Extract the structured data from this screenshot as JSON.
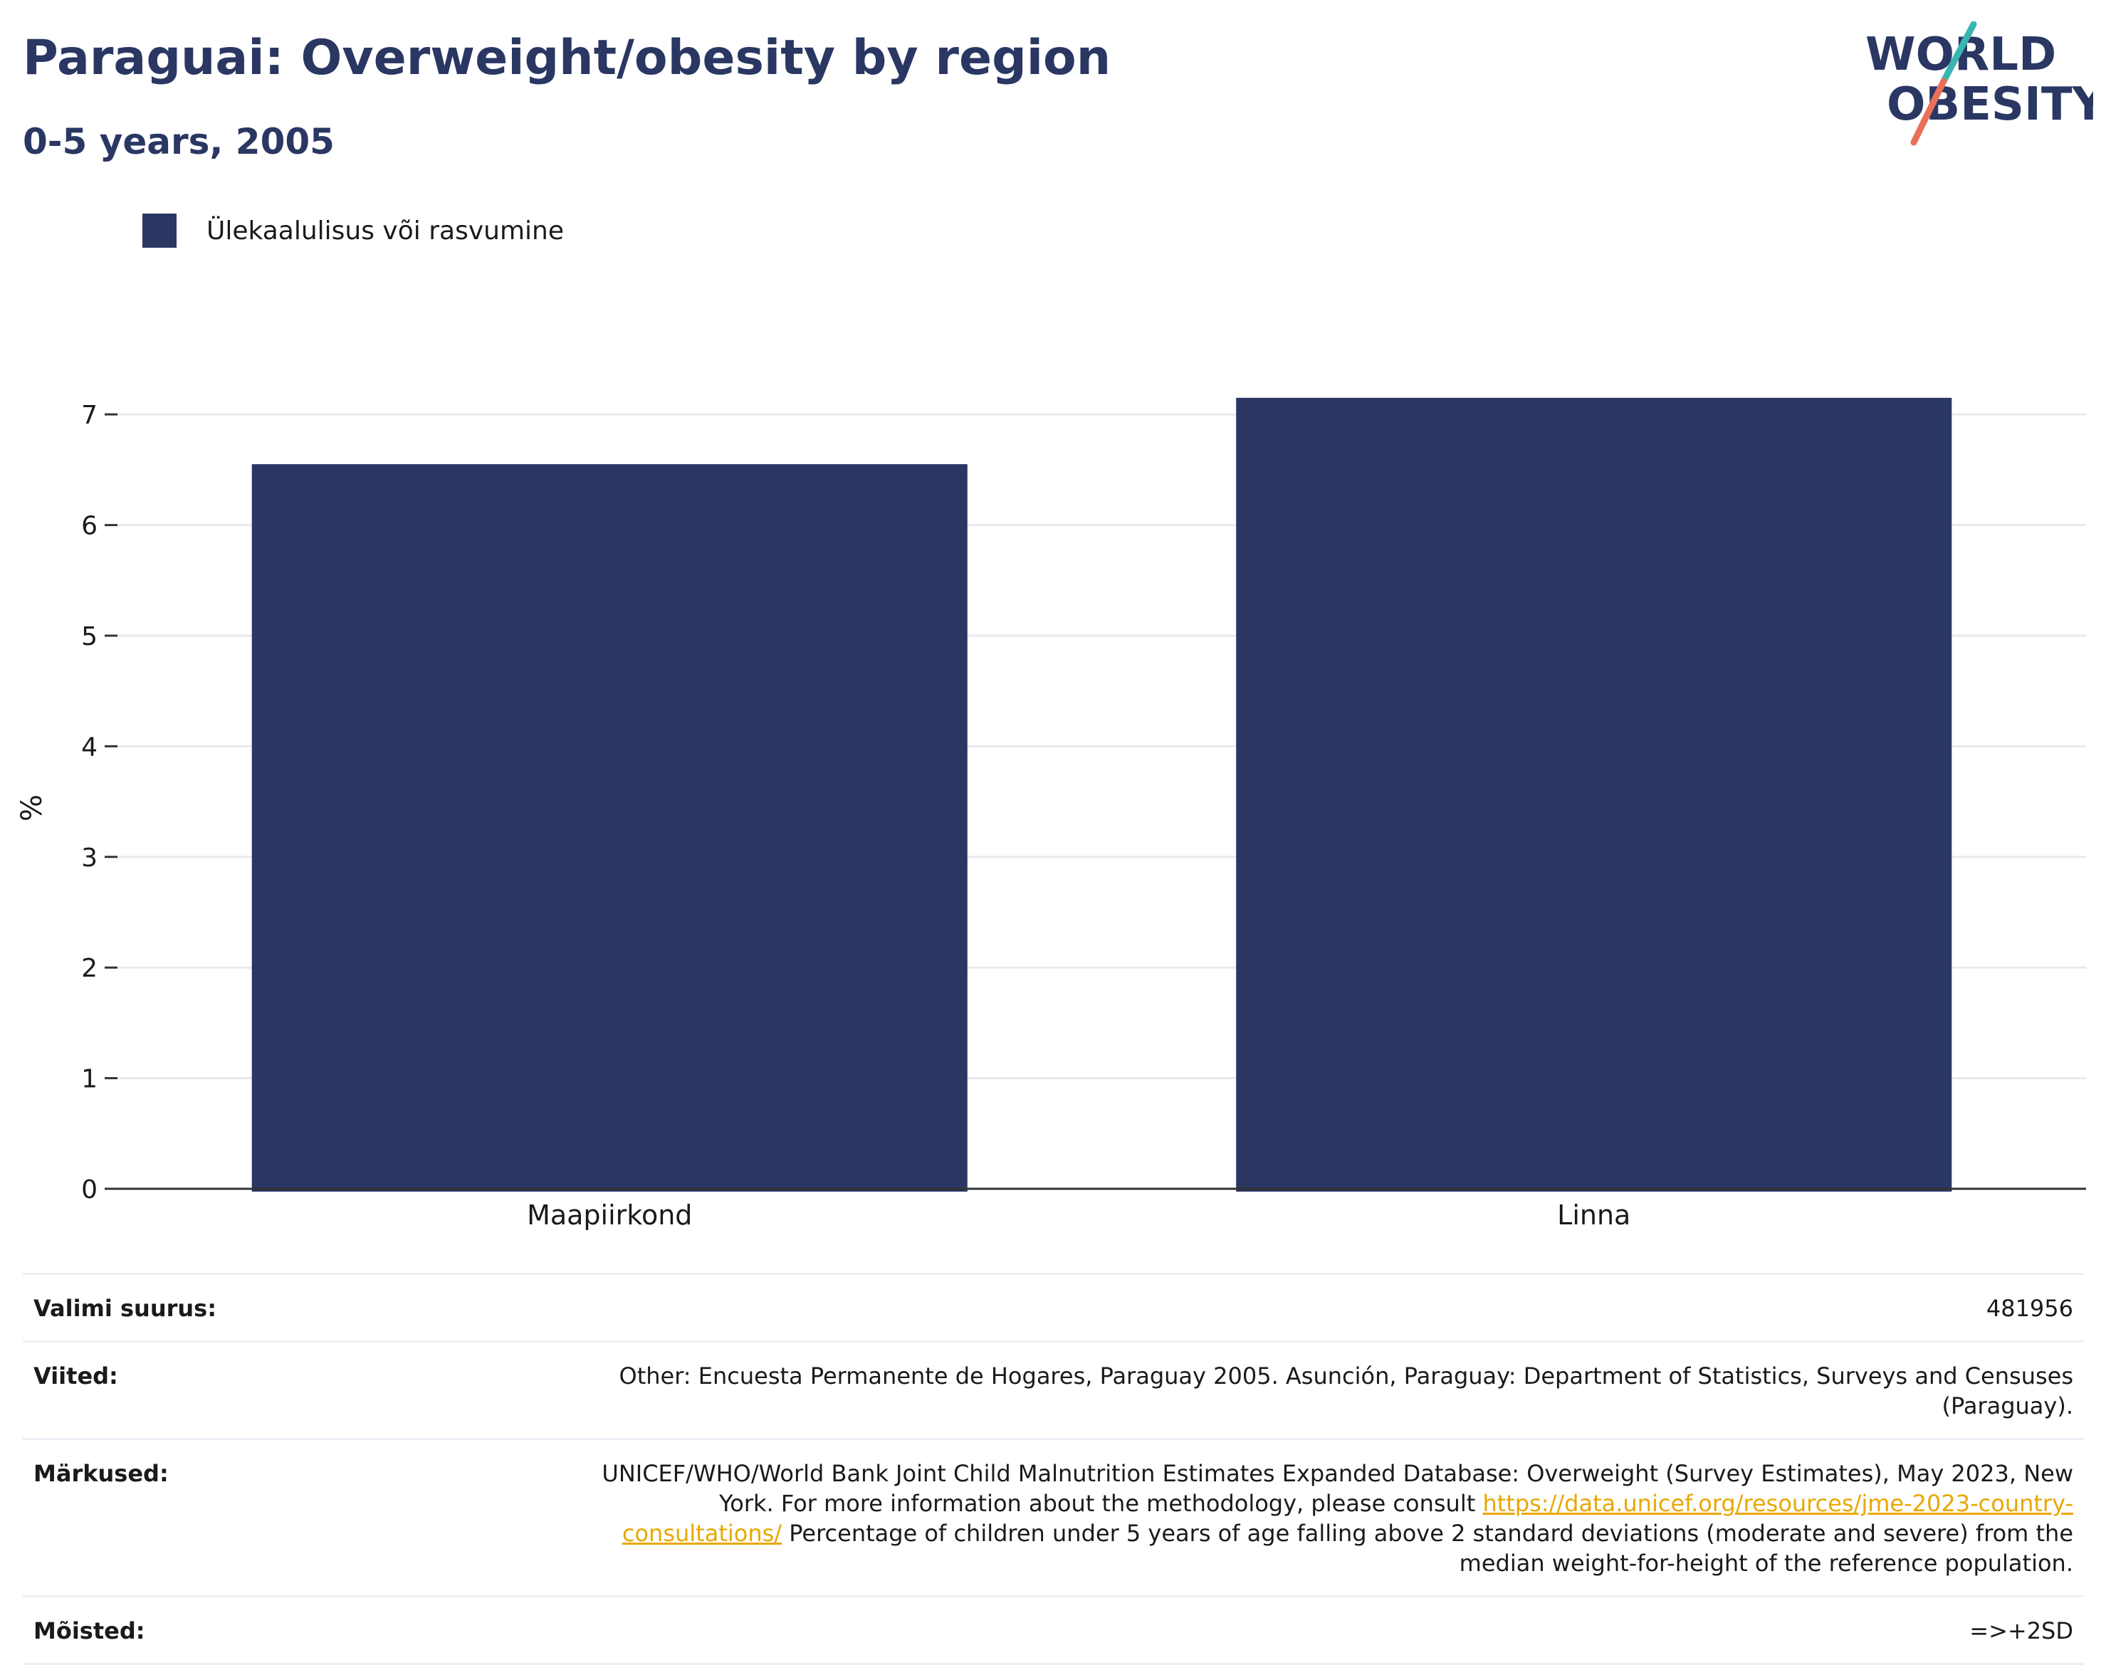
{
  "header": {
    "title": "Paraguai: Overweight/obesity by region",
    "subtitle": "0-5 years, 2005"
  },
  "logo": {
    "line1": "WORLD",
    "line2": "OBESITY",
    "colors": {
      "text": "#2a3763",
      "slash_top": "#3ab5b0",
      "slash_bottom": "#e8705a"
    }
  },
  "chart_data": {
    "type": "bar",
    "categories": [
      "Maapiirkond",
      "Linna"
    ],
    "series": [
      {
        "name": "Ülekaalulisus või rasvumine",
        "values": [
          6.55,
          7.15
        ],
        "color": "#2a3763"
      }
    ],
    "ylabel": "%",
    "ylim": [
      0,
      7.4
    ],
    "yticks": [
      0,
      1,
      2,
      3,
      4,
      5,
      6,
      7
    ],
    "grid": true,
    "legend_position": "top-left"
  },
  "info": {
    "sample_label": "Valimi suurus:",
    "sample_value": "481956",
    "refs_label": "Viited:",
    "refs_value": "Other: Encuesta Permanente de Hogares, Paraguay 2005. Asunción, Paraguay: Department of Statistics, Surveys and Censuses (Paraguay).",
    "notes_label": "Märkused:",
    "notes_text_1": "UNICEF/WHO/World Bank Joint Child Malnutrition Estimates Expanded Database: Overweight (Survey Estimates), May 2023, New York. For more information about the methodology, please consult ",
    "notes_link": "https://data.unicef.org/resources/jme-2023-country-consultations/",
    "notes_text_2": " Percentage of children under 5 years of age falling above 2 standard deviations (moderate and severe) from the median weight-for-height of the reference population.",
    "defs_label": "Mõisted:",
    "defs_value": "=>+2SD"
  }
}
